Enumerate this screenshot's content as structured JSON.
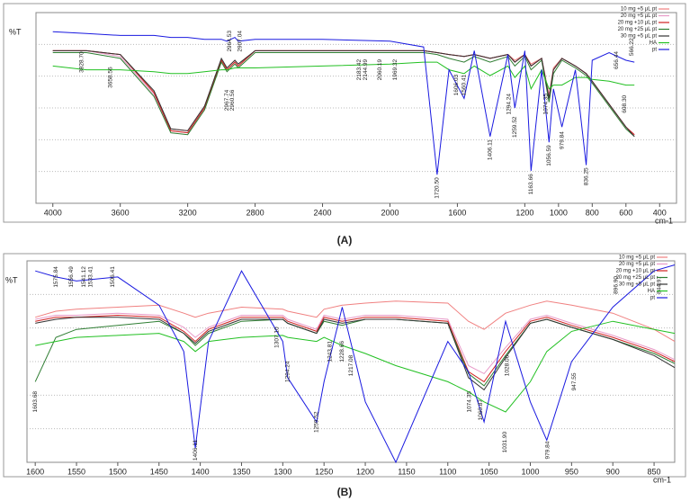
{
  "chart_data": [
    {
      "type": "line",
      "caption": "(A)",
      "y_label": "%T",
      "x_label": "cm-1",
      "xlim": [
        4100,
        300
      ],
      "ylim": [
        0,
        100
      ],
      "xticks": [
        4000,
        3600,
        3200,
        2800,
        2400,
        2000,
        1600,
        1200,
        1000,
        800,
        600,
        400
      ],
      "grid": true,
      "legend": "top-right",
      "x": [
        4000,
        3800,
        3600,
        3400,
        3300,
        3200,
        3100,
        3000,
        2967,
        2920,
        2900,
        2800,
        2400,
        2000,
        1800,
        1720,
        1650,
        1560,
        1500,
        1406,
        1300,
        1259,
        1200,
        1163,
        1100,
        1056,
        1030,
        980,
        900,
        836,
        800,
        700,
        600,
        550
      ],
      "series": [
        {
          "name": "10 mg +5 µL pt",
          "color": "#f08080",
          "values": [
            80,
            80,
            78,
            58,
            39,
            38,
            51,
            75,
            71,
            75,
            73,
            80,
            80,
            80,
            80,
            79,
            78,
            77,
            78,
            76,
            78,
            75,
            78,
            73,
            76,
            57,
            71,
            76,
            72,
            68,
            64,
            52,
            40,
            36
          ]
        },
        {
          "name": "20 mg +5 µL pt",
          "color": "#e89ac8",
          "values": [
            80,
            80,
            77,
            57,
            38,
            37,
            50,
            75,
            70,
            74,
            72,
            80,
            80,
            80,
            80,
            79,
            78,
            77,
            78,
            76,
            78,
            74,
            78,
            72,
            76,
            56,
            70,
            76,
            72,
            68,
            64,
            52,
            40,
            36
          ]
        },
        {
          "name": "20 mg +10 µL pt",
          "color": "#d02020",
          "values": [
            80,
            80,
            78,
            58,
            38,
            37,
            50,
            75,
            70,
            74,
            72,
            80,
            80,
            80,
            80,
            79,
            78,
            77,
            78,
            76,
            78,
            74,
            78,
            72,
            76,
            55,
            70,
            76,
            72,
            68,
            64,
            52,
            40,
            36
          ]
        },
        {
          "name": "20 mg +25 µL pt",
          "color": "#2e7d32",
          "values": [
            79,
            79,
            76,
            56,
            37,
            36,
            49,
            74,
            69,
            73,
            71,
            79,
            79,
            79,
            79,
            78,
            76,
            74,
            77,
            74,
            77,
            72,
            77,
            70,
            75,
            53,
            68,
            75,
            71,
            67,
            63,
            51,
            39,
            35
          ]
        },
        {
          "name": "30 mg +5 µL pt",
          "color": "#333333",
          "values": [
            80,
            80,
            78,
            59,
            39,
            38,
            51,
            76,
            71,
            75,
            73,
            80,
            80,
            80,
            80,
            79,
            78,
            77,
            78,
            76,
            78,
            74,
            78,
            72,
            76,
            55,
            70,
            76,
            72,
            68,
            64,
            52,
            40,
            35
          ]
        },
        {
          "name": "HA",
          "color": "#22c022",
          "values": [
            72,
            70,
            70,
            69,
            68,
            68,
            69,
            70,
            70,
            71,
            71,
            71,
            72,
            73,
            74,
            74,
            70,
            68,
            72,
            67,
            72,
            66,
            72,
            60,
            70,
            60,
            62,
            62,
            66,
            66,
            65,
            64,
            62,
            62
          ]
        },
        {
          "name": "pt",
          "color": "#1a1ae0",
          "values": [
            90,
            89,
            88,
            88,
            87,
            87,
            86,
            86,
            85,
            87,
            85,
            86,
            86,
            85,
            82,
            15,
            70,
            55,
            80,
            35,
            78,
            50,
            80,
            17,
            70,
            32,
            60,
            40,
            70,
            20,
            75,
            79,
            75,
            74
          ]
        }
      ],
      "annotations": [
        {
          "text": "3828.70",
          "x": 3828,
          "y": 74
        },
        {
          "text": "3658.56",
          "x": 3658,
          "y": 66
        },
        {
          "text": "2967.74",
          "x": 2967,
          "y": 54
        },
        {
          "text": "2960.56",
          "x": 2935,
          "y": 54
        },
        {
          "text": "2964.53",
          "x": 2950,
          "y": 85
        },
        {
          "text": "2907.04",
          "x": 2890,
          "y": 85
        },
        {
          "text": "2183.42",
          "x": 2183,
          "y": 70
        },
        {
          "text": "2144.99",
          "x": 2144,
          "y": 70
        },
        {
          "text": "2060.19",
          "x": 2060,
          "y": 70
        },
        {
          "text": "1969.32",
          "x": 1969,
          "y": 70
        },
        {
          "text": "1720.50",
          "x": 1720,
          "y": 8
        },
        {
          "text": "1606.03",
          "x": 1606,
          "y": 62
        },
        {
          "text": "1560.41",
          "x": 1560,
          "y": 62
        },
        {
          "text": "1406.11",
          "x": 1406,
          "y": 28
        },
        {
          "text": "1294.24",
          "x": 1294,
          "y": 52
        },
        {
          "text": "1259.52",
          "x": 1259,
          "y": 40
        },
        {
          "text": "1163.66",
          "x": 1163,
          "y": 10
        },
        {
          "text": "1074.35",
          "x": 1074,
          "y": 52
        },
        {
          "text": "1056.59",
          "x": 1056,
          "y": 25
        },
        {
          "text": "979.84",
          "x": 979,
          "y": 33
        },
        {
          "text": "836.25",
          "x": 836,
          "y": 14
        },
        {
          "text": "608.30",
          "x": 608,
          "y": 52
        },
        {
          "text": "656.44",
          "x": 656,
          "y": 75
        },
        {
          "text": "566.22",
          "x": 566,
          "y": 82
        }
      ]
    },
    {
      "type": "line",
      "caption": "(B)",
      "y_label": "%T",
      "x_label": "cm-1",
      "xlim": [
        1610,
        825
      ],
      "ylim": [
        0,
        100
      ],
      "xticks": [
        1600,
        1550,
        1500,
        1450,
        1400,
        1350,
        1300,
        1250,
        1200,
        1150,
        1100,
        1050,
        1000,
        950,
        900,
        850
      ],
      "grid": true,
      "legend": "top-right",
      "x": [
        1600,
        1575,
        1550,
        1500,
        1450,
        1420,
        1406,
        1390,
        1350,
        1300,
        1294,
        1259,
        1250,
        1228,
        1200,
        1163,
        1100,
        1075,
        1056,
        1030,
        1000,
        980,
        950,
        900,
        850,
        825
      ],
      "series": [
        {
          "name": "10 mg +5 µL pt",
          "color": "#f08080",
          "values": [
            72,
            75,
            76,
            77,
            78,
            74,
            72,
            74,
            77,
            76,
            75,
            72,
            76,
            78,
            79,
            80,
            79,
            70,
            66,
            74,
            78,
            80,
            78,
            74,
            66,
            60
          ]
        },
        {
          "name": "20 mg +5 µL pt",
          "color": "#e89ac8",
          "values": [
            71,
            73,
            73,
            74,
            73,
            67,
            62,
            67,
            73,
            73,
            71,
            66,
            73,
            71,
            73,
            73,
            71,
            48,
            44,
            57,
            71,
            73,
            69,
            63,
            56,
            51
          ]
        },
        {
          "name": "20 mg +10 µL pt",
          "color": "#d02020",
          "values": [
            70,
            72,
            72,
            73,
            72,
            65,
            60,
            66,
            72,
            72,
            70,
            65,
            72,
            70,
            72,
            72,
            70,
            45,
            40,
            55,
            70,
            72,
            68,
            62,
            55,
            50
          ]
        },
        {
          "name": "20 mg +25 µL pt",
          "color": "#2e7d32",
          "values": [
            40,
            62,
            66,
            68,
            70,
            64,
            58,
            64,
            70,
            71,
            69,
            64,
            70,
            68,
            71,
            71,
            69,
            44,
            38,
            53,
            69,
            71,
            67,
            61,
            54,
            49
          ]
        },
        {
          "name": "30 mg +5 µL pt",
          "color": "#333333",
          "values": [
            69,
            71,
            72,
            72,
            71,
            64,
            59,
            65,
            71,
            71,
            69,
            64,
            71,
            69,
            71,
            71,
            69,
            42,
            36,
            52,
            69,
            71,
            67,
            61,
            53,
            47
          ]
        },
        {
          "name": "HA",
          "color": "#22c022",
          "values": [
            58,
            60,
            62,
            63,
            64,
            60,
            55,
            60,
            62,
            63,
            62,
            60,
            62,
            58,
            54,
            48,
            40,
            35,
            30,
            25,
            40,
            55,
            65,
            70,
            66,
            64
          ]
        },
        {
          "name": "pt",
          "color": "#1a1ae0",
          "values": [
            95,
            92,
            90,
            92,
            78,
            55,
            7,
            60,
            95,
            60,
            42,
            20,
            40,
            77,
            30,
            0,
            60,
            45,
            20,
            70,
            30,
            11,
            50,
            77,
            95,
            98
          ]
        }
      ],
      "annotations": [
        {
          "text": "1575.84",
          "x": 1575,
          "y": 92
        },
        {
          "text": "1556.49",
          "x": 1556,
          "y": 92
        },
        {
          "text": "1541.12",
          "x": 1541,
          "y": 92
        },
        {
          "text": "1533.41",
          "x": 1533,
          "y": 92
        },
        {
          "text": "1506.41",
          "x": 1506,
          "y": 92
        },
        {
          "text": "1603.68",
          "x": 1600,
          "y": 30
        },
        {
          "text": "1406.11",
          "x": 1406,
          "y": 6
        },
        {
          "text": "1294.24",
          "x": 1294,
          "y": 45
        },
        {
          "text": "1259.52",
          "x": 1259,
          "y": 20
        },
        {
          "text": "1243.81",
          "x": 1243,
          "y": 55
        },
        {
          "text": "1228.66",
          "x": 1228,
          "y": 55
        },
        {
          "text": "1217.08",
          "x": 1217,
          "y": 48
        },
        {
          "text": "1307.10",
          "x": 1307,
          "y": 62
        },
        {
          "text": "1074.35",
          "x": 1074,
          "y": 30
        },
        {
          "text": "1060.87",
          "x": 1060,
          "y": 26
        },
        {
          "text": "1028.06",
          "x": 1028,
          "y": 48
        },
        {
          "text": "1031.90",
          "x": 1031,
          "y": 10
        },
        {
          "text": "979.84",
          "x": 979,
          "y": 6
        },
        {
          "text": "947.55",
          "x": 947,
          "y": 40
        },
        {
          "text": "896.90",
          "x": 896,
          "y": 88
        },
        {
          "text": "844.97",
          "x": 844,
          "y": 88
        }
      ]
    }
  ]
}
